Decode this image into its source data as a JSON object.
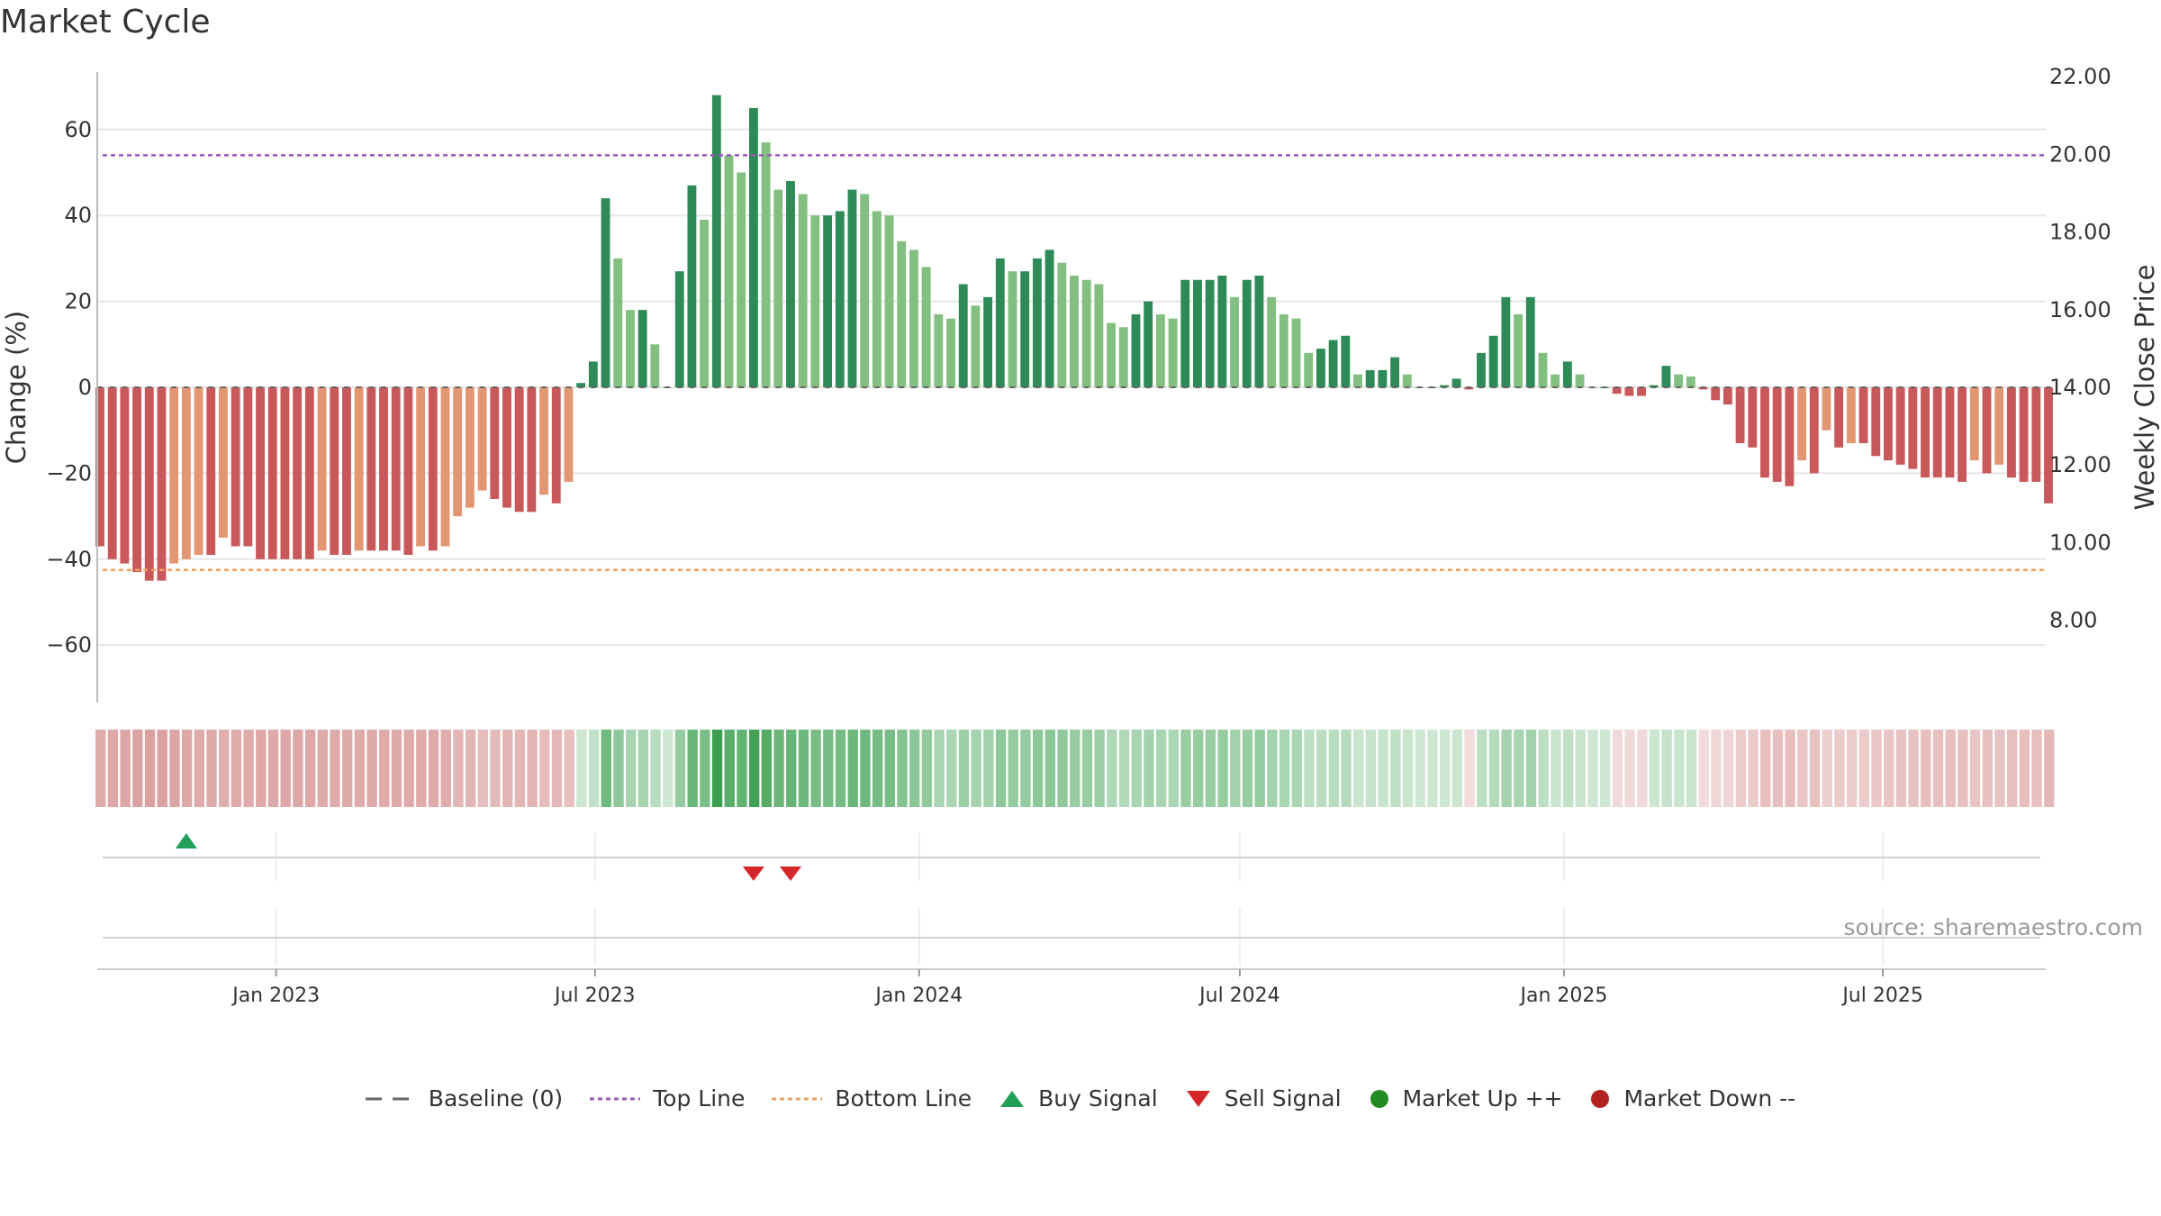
{
  "chart_data": {
    "type": "bar",
    "title": "Market Cycle",
    "ylabel": "Change (%)",
    "y2label": "Weekly Close Price",
    "ylim": [
      -73,
      73
    ],
    "y_ticks": [
      60,
      40,
      20,
      0,
      -20,
      -40,
      -60
    ],
    "y2lim": [
      6.5,
      22.5
    ],
    "y2_ticks": [
      "22.00",
      "20.00",
      "18.00",
      "16.00",
      "14.00",
      "12.00",
      "10.00",
      "8.00"
    ],
    "x_start": "2022-09-23",
    "x_ticks": [
      {
        "label": "Jan 2023",
        "date": "2023-01-01"
      },
      {
        "label": "Jul 2023",
        "date": "2023-07-01"
      },
      {
        "label": "Jan 2024",
        "date": "2024-01-01"
      },
      {
        "label": "Jul 2024",
        "date": "2024-07-01"
      },
      {
        "label": "Jan 2025",
        "date": "2025-01-01"
      },
      {
        "label": "Jul 2025",
        "date": "2025-07-01"
      }
    ],
    "top_line": 54,
    "bottom_line": -42.5,
    "values": [
      -37,
      -40,
      -41,
      -43,
      -45,
      -45,
      -41,
      -40,
      -39,
      -39,
      -35,
      -37,
      -37,
      -40,
      -40,
      -40,
      -40,
      -40,
      -38,
      -39,
      -39,
      -38,
      -38,
      -38,
      -38,
      -39,
      -37,
      -38,
      -37,
      -30,
      -28,
      -24,
      -26,
      -28,
      -29,
      -29,
      -25,
      -27,
      -22,
      1,
      6,
      44,
      30,
      18,
      18,
      10,
      0,
      27,
      47,
      39,
      68,
      54,
      50,
      65,
      57,
      46,
      48,
      45,
      40,
      40,
      41,
      46,
      45,
      41,
      40,
      34,
      32,
      28,
      17,
      16,
      24,
      19,
      21,
      30,
      27,
      27,
      30,
      32,
      29,
      26,
      25,
      24,
      15,
      14,
      17,
      20,
      17,
      16,
      25,
      25,
      25,
      26,
      21,
      25,
      26,
      21,
      17,
      16,
      8,
      9,
      11,
      12,
      3,
      4,
      4,
      7,
      3,
      0,
      0,
      0.5,
      2,
      -0.5,
      8,
      12,
      21,
      17,
      21,
      8,
      3,
      6,
      3,
      0,
      0,
      -1.5,
      -2,
      -2,
      0.5,
      5,
      3,
      2.5,
      -0.5,
      -3,
      -4,
      -13,
      -14,
      -21,
      -22,
      -23,
      -17,
      -20,
      -10,
      -14,
      -13,
      -13,
      -16,
      -17,
      -18,
      -19,
      -21,
      -21,
      -21,
      -22,
      -17,
      -20,
      -18,
      -21,
      -22,
      -22,
      -27
    ],
    "signals": [
      {
        "type": "buy",
        "date": "2022-11-11"
      },
      {
        "type": "sell",
        "date": "2023-09-29"
      },
      {
        "type": "sell",
        "date": "2023-10-20"
      }
    ],
    "legend": [
      "Baseline (0)",
      "Top Line",
      "Bottom Line",
      "Buy Signal",
      "Sell Signal",
      "Market Up ++",
      "Market Down --"
    ],
    "grid": true,
    "legend_position": "bottom"
  },
  "colors": {
    "up_strong": "#2e8a57",
    "up_light": "#82bf80",
    "down_strong": "#c9585b",
    "down_light": "#e39672",
    "top_line": "#9b59b6",
    "bottom_line": "#f0a060",
    "buy": "#22a05a",
    "sell": "#d62728",
    "market_up": "#228b22",
    "market_down": "#b22222",
    "baseline": "#666666"
  },
  "source_text": "source: sharemaestro.com"
}
